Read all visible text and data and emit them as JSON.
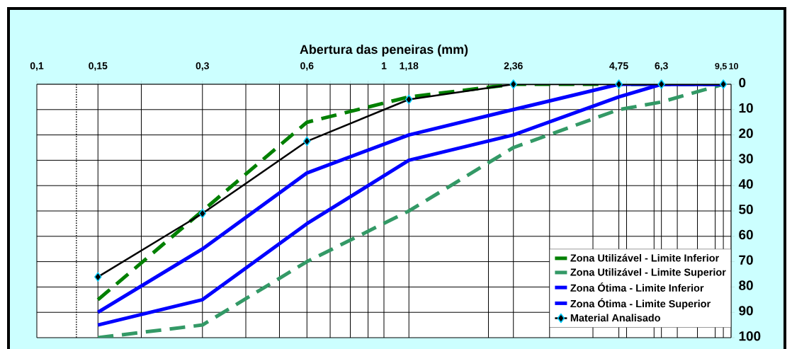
{
  "chart_data": {
    "type": "line",
    "xlabel": "Abertura das peneiras (mm)",
    "x": [
      0.15,
      0.3,
      0.6,
      1.18,
      2.36,
      4.75,
      6.3,
      9.5
    ],
    "series": [
      {
        "name": "Zona Utilizável - Limite Inferior",
        "color": "#008000",
        "line_style": "dashed",
        "marker": "none",
        "values": [
          85,
          50,
          15,
          5,
          0,
          0,
          0,
          0
        ]
      },
      {
        "name": "Zona Utilizável - Limite Superior",
        "color": "#339966",
        "line_style": "dashed",
        "marker": "none",
        "values": [
          100,
          95,
          70,
          50,
          25,
          10,
          7,
          0
        ]
      },
      {
        "name": "Zona Ótima - Limite Inferior",
        "color": "#0000ff",
        "line_style": "solid",
        "marker": "none",
        "values": [
          90,
          65,
          35,
          20,
          10,
          0,
          0,
          0
        ]
      },
      {
        "name": "Zona Ótima - Limite Superior",
        "color": "#0000ff",
        "line_style": "solid",
        "marker": "none",
        "values": [
          95,
          85,
          55,
          30,
          20,
          5,
          0,
          0
        ]
      },
      {
        "name": "Material Analisado",
        "color": "#000000",
        "line_style": "solid",
        "marker": "diamond",
        "values": [
          76,
          51,
          22.5,
          6,
          0,
          0,
          0,
          0
        ]
      }
    ],
    "log": "x",
    "xlim": [
      0.1,
      10
    ],
    "ylim": [
      100,
      0
    ],
    "xticks": [
      {
        "value": 0.1,
        "label": "0,1"
      },
      {
        "value": 0.15,
        "label": "0,15"
      },
      {
        "value": 0.2,
        "label": null
      },
      {
        "value": 0.3,
        "label": "0,3"
      },
      {
        "value": 0.4,
        "label": null
      },
      {
        "value": 0.5,
        "label": null
      },
      {
        "value": 0.6,
        "label": "0,6"
      },
      {
        "value": 0.7,
        "label": null
      },
      {
        "value": 0.8,
        "label": null
      },
      {
        "value": 0.9,
        "label": null
      },
      {
        "value": 1,
        "label": "1"
      },
      {
        "value": 1.18,
        "label": "1,18"
      },
      {
        "value": 2,
        "label": null
      },
      {
        "value": 2.36,
        "label": "2,36"
      },
      {
        "value": 3,
        "label": null
      },
      {
        "value": 4,
        "label": null
      },
      {
        "value": 4.75,
        "label": "4,75"
      },
      {
        "value": 5,
        "label": null
      },
      {
        "value": 6,
        "label": null
      },
      {
        "value": 6.3,
        "label": "6,3"
      },
      {
        "value": 7,
        "label": null
      },
      {
        "value": 8,
        "label": null
      },
      {
        "value": 9,
        "label": null
      },
      {
        "value": 9.5,
        "label": "9,5"
      },
      {
        "value": 10,
        "label": "10"
      }
    ],
    "yticks": [
      0,
      10,
      20,
      30,
      40,
      50,
      60,
      70,
      80,
      90,
      100
    ],
    "ref_lines": [
      {
        "axis": "x",
        "value": 0.13,
        "color": "#000000",
        "line_style": "dotted"
      }
    ],
    "grid": true,
    "legend": "bottom right"
  }
}
